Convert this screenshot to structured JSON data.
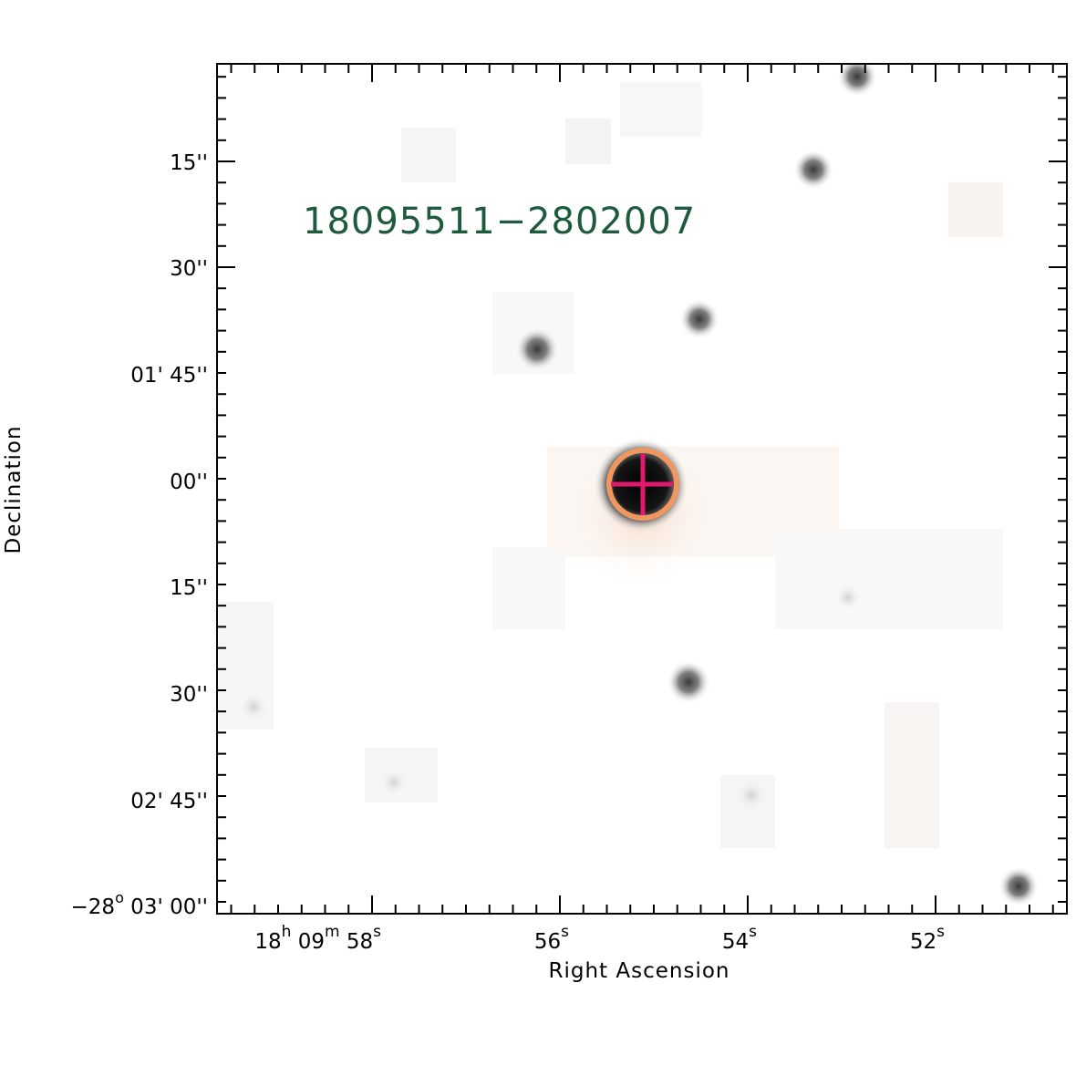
{
  "field": {
    "object_label": "18095511−2802007",
    "label_color": "#1e5a3c",
    "circle_color": "#f0965f",
    "cross_color": "#e0186e"
  },
  "axes": {
    "xlabel": "Right Ascension",
    "ylabel": "Declination",
    "dec_ticks": [
      {
        "pre": "",
        "sup": "",
        "text": "15''"
      },
      {
        "pre": "",
        "sup": "",
        "text": "30''"
      },
      {
        "pre": "",
        "sup": "",
        "text": "01' 45''"
      },
      {
        "pre": "",
        "sup": "",
        "text": "00''"
      },
      {
        "pre": "",
        "sup": "",
        "text": "15''"
      },
      {
        "pre": "",
        "sup": "",
        "text": "30''"
      },
      {
        "pre": "",
        "sup": "",
        "text": "02' 45''"
      },
      {
        "pre": "−28",
        "sup": "o",
        "text": "03' 00''"
      }
    ],
    "ra_ticks": [
      {
        "parts": [
          {
            "t": "18"
          },
          {
            "s": "h"
          },
          {
            "t": " 09"
          },
          {
            "s": "m"
          },
          {
            "t": " 58"
          },
          {
            "s": "s"
          }
        ]
      },
      {
        "parts": [
          {
            "t": "56"
          },
          {
            "s": "s"
          }
        ]
      },
      {
        "parts": [
          {
            "t": "54"
          },
          {
            "s": "s"
          }
        ]
      },
      {
        "parts": [
          {
            "t": "52"
          },
          {
            "s": "s"
          }
        ]
      }
    ]
  }
}
